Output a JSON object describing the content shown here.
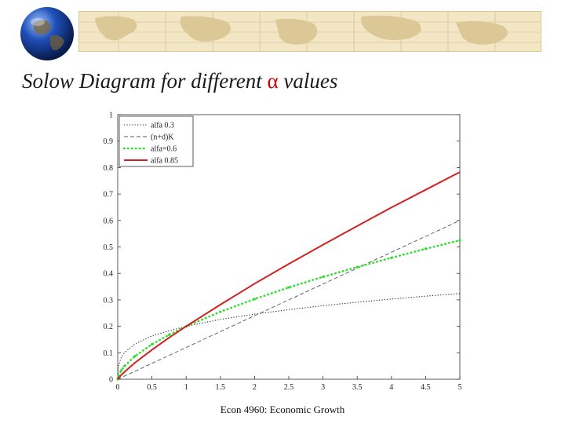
{
  "slide": {
    "title_prefix": "Solow Diagram for different ",
    "title_symbol": "α",
    "title_suffix": "  values",
    "footer": "Econ 4960: Economic Growth"
  },
  "colors": {
    "red": "#d42020",
    "green": "#33dd33",
    "black": "#222222",
    "grey": "#555555"
  },
  "icons": {
    "globe": "globe-icon",
    "map": "world-map-band"
  },
  "chart_data": {
    "type": "line",
    "title": "",
    "xlabel": "",
    "ylabel": "",
    "xlim": [
      0,
      5
    ],
    "ylim": [
      0,
      1
    ],
    "x_ticks": [
      "0",
      "0.5",
      "1",
      "1.5",
      "2",
      "2.5",
      "3",
      "3.5",
      "4",
      "4.5",
      "5"
    ],
    "y_ticks": [
      "0",
      "0.1",
      "0.2",
      "0.3",
      "0.4",
      "0.5",
      "0.6",
      "0.7",
      "0.8",
      "0.9",
      "1"
    ],
    "legend_position": "top-left",
    "grid": false,
    "x": [
      0,
      0.01,
      0.05,
      0.1,
      0.25,
      0.5,
      0.75,
      1,
      1.5,
      2,
      2.5,
      3,
      3.5,
      4,
      4.5,
      5
    ],
    "series": [
      {
        "name": "alfa 0.3",
        "style": "dotted",
        "color": "#222222",
        "values": [
          0,
          0.051,
          0.082,
          0.101,
          0.133,
          0.164,
          0.183,
          0.2,
          0.226,
          0.246,
          0.263,
          0.278,
          0.291,
          0.303,
          0.314,
          0.324
        ]
      },
      {
        "name": "(n+d)K",
        "style": "dashed",
        "color": "#555555",
        "values": [
          0,
          0.0012,
          0.006,
          0.012,
          0.03,
          0.06,
          0.09,
          0.12,
          0.18,
          0.24,
          0.3,
          0.36,
          0.42,
          0.48,
          0.54,
          0.6
        ]
      },
      {
        "name": "alfa=0.6",
        "style": "dots",
        "color": "#33dd33",
        "values": [
          0,
          0.013,
          0.033,
          0.05,
          0.087,
          0.132,
          0.168,
          0.2,
          0.255,
          0.303,
          0.347,
          0.387,
          0.424,
          0.459,
          0.493,
          0.525
        ]
      },
      {
        "name": "alfa 0.85",
        "style": "solid",
        "color": "#d42020",
        "values": [
          0,
          0.004,
          0.016,
          0.028,
          0.062,
          0.111,
          0.157,
          0.2,
          0.282,
          0.361,
          0.436,
          0.508,
          0.579,
          0.649,
          0.716,
          0.783
        ]
      }
    ]
  }
}
